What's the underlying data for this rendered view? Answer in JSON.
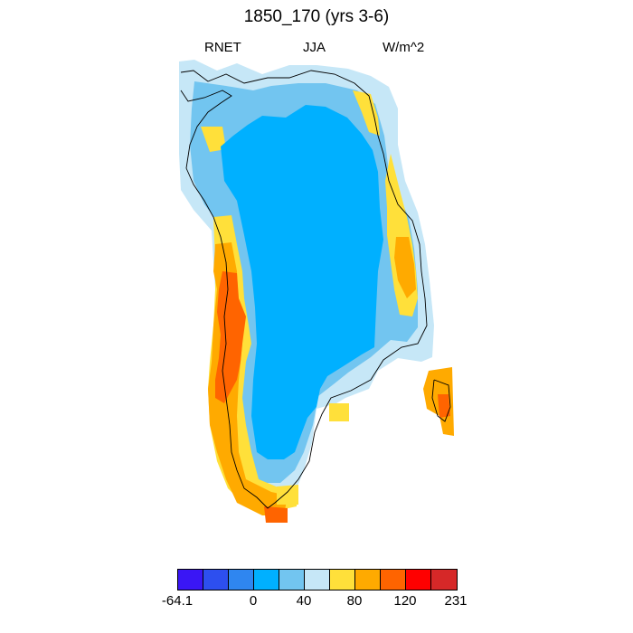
{
  "header": {
    "title": "1850_170 (yrs 3-6)",
    "left_label": "RNET",
    "center_label": "JJA",
    "right_label": "W/m^2"
  },
  "legend": {
    "colors": [
      "#3a16f5",
      "#2d4fef",
      "#2f86f0",
      "#00b0ff",
      "#72c5f0",
      "#c6e7f7",
      "#ffe03a",
      "#ffaa00",
      "#ff6400",
      "#ff0000",
      "#d62828"
    ],
    "tick_labels": [
      "-64.1",
      "0",
      "40",
      "80",
      "120",
      "231"
    ]
  },
  "map": {
    "region": "Greenland",
    "ice_sheet_color": "#00b0ff",
    "coast_color": "#000000"
  }
}
